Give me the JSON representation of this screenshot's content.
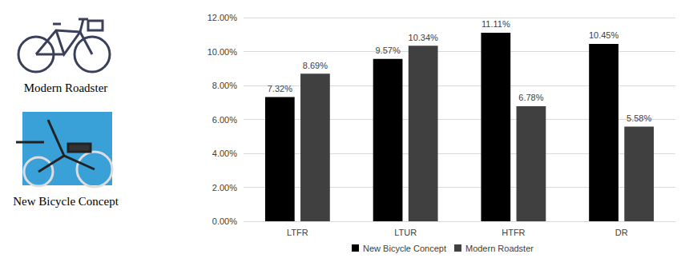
{
  "chart_data": {
    "type": "bar",
    "categories": [
      "LTFR",
      "LTUR",
      "HTFR",
      "DR"
    ],
    "series": [
      {
        "name": "New Bicycle Concept",
        "color": "#000000",
        "values": [
          7.32,
          9.57,
          11.11,
          10.45
        ],
        "value_labels": [
          "7.32%",
          "9.57%",
          "11.11%",
          "10.45%"
        ]
      },
      {
        "name": "Modern Roadster",
        "color": "#404040",
        "values": [
          8.69,
          10.34,
          6.78,
          5.58
        ],
        "value_labels": [
          "8.69%",
          "10.34%",
          "6.78%",
          "5.58%"
        ]
      }
    ],
    "ylim": [
      0,
      12
    ],
    "yticks": [
      {
        "value": 0,
        "label": "0.00%"
      },
      {
        "value": 2,
        "label": "2.00%"
      },
      {
        "value": 4,
        "label": "4.00%"
      },
      {
        "value": 6,
        "label": "6.00%"
      },
      {
        "value": 8,
        "label": "8.00%"
      },
      {
        "value": 10,
        "label": "10.00%"
      },
      {
        "value": 12,
        "label": "12.00%"
      }
    ],
    "grid": true,
    "legend": "bottom",
    "data_labels": true
  },
  "figure": {
    "captions": [
      "Modern Roadster",
      "New Bicycle Concept"
    ]
  }
}
